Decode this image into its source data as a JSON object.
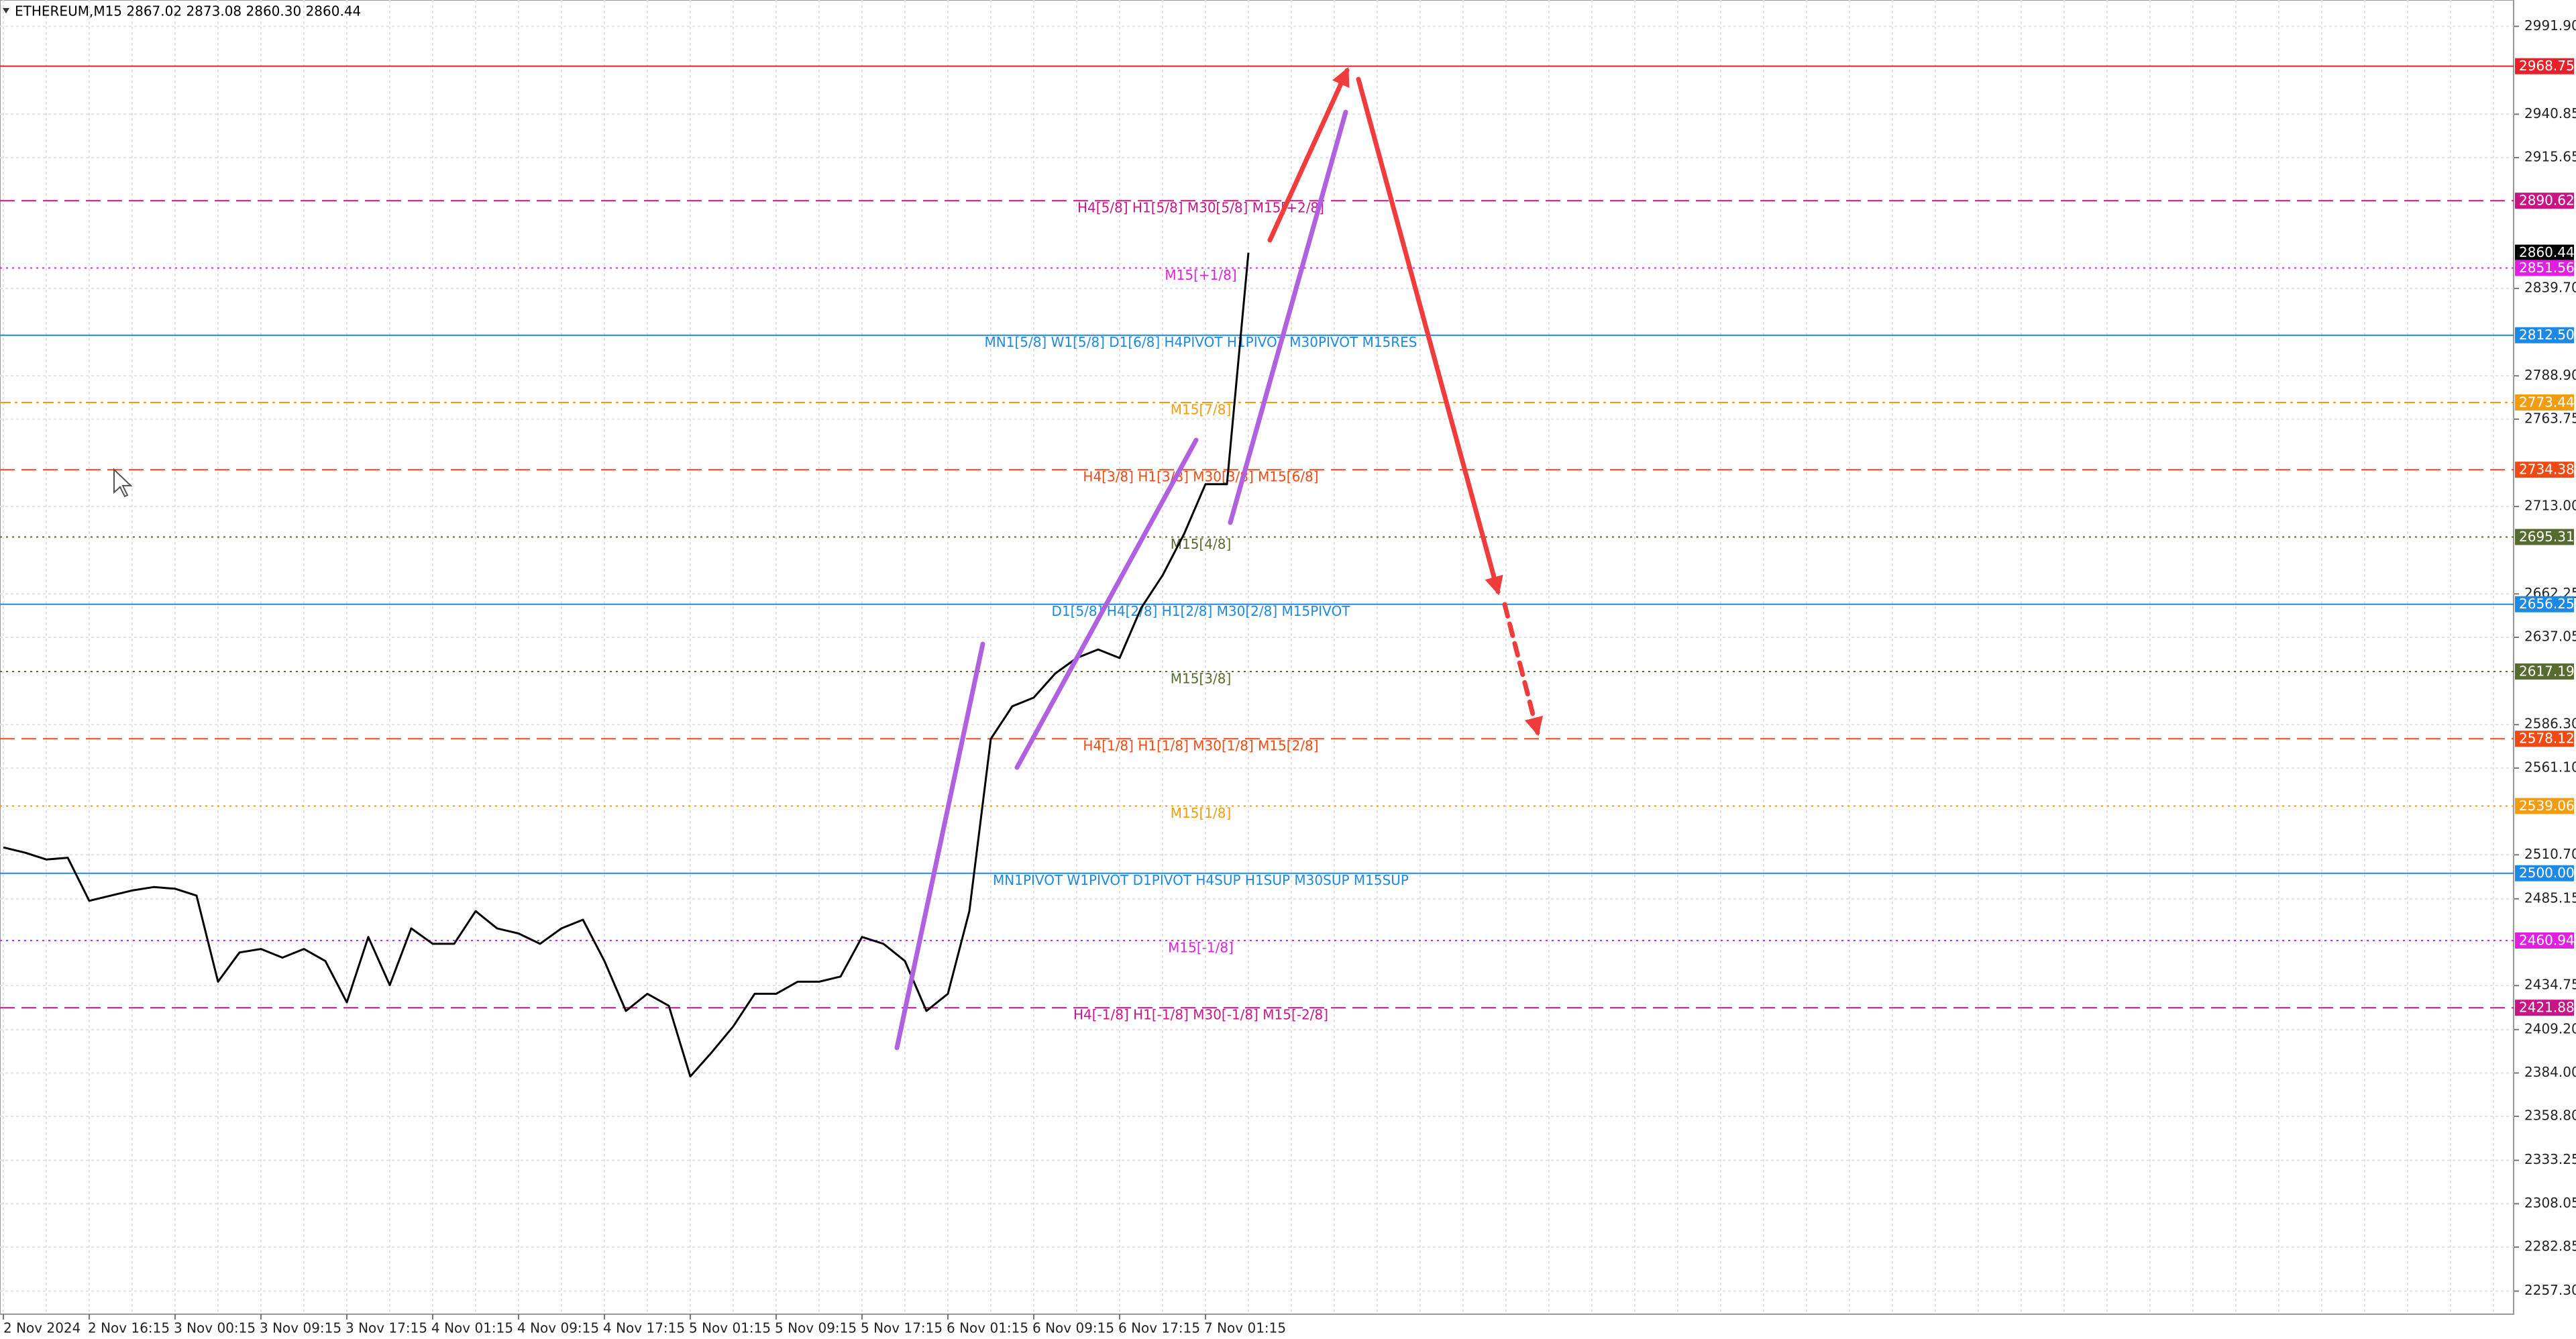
{
  "header": {
    "symbol_line": "ETHEREUM,M15  2867.02 2873.08 2860.30 2860.44"
  },
  "chart_data": {
    "type": "line",
    "categories": [
      "2 Nov 2024",
      null,
      null,
      null,
      "2 Nov 16:15",
      null,
      null,
      null,
      "3 Nov 00:15",
      null,
      null,
      null,
      "3 Nov 09:15",
      null,
      null,
      null,
      "3 Nov 17:15",
      null,
      null,
      null,
      "4 Nov 01:15",
      null,
      null,
      null,
      "4 Nov 09:15",
      null,
      null,
      null,
      "4 Nov 17:15",
      null,
      null,
      null,
      "5 Nov 01:15",
      null,
      null,
      null,
      "5 Nov 09:15",
      null,
      null,
      null,
      "5 Nov 17:15",
      null,
      null,
      null,
      "6 Nov 01:15",
      null,
      null,
      null,
      "6 Nov 09:15",
      null,
      null,
      null,
      "6 Nov 17:15",
      null,
      null,
      null,
      "7 Nov 01:15",
      null,
      null
    ],
    "series": [
      {
        "color": "#000000",
        "values": [
          2515,
          2512,
          2508,
          2509,
          2484,
          2487,
          2490,
          2492,
          2491,
          2487,
          2437,
          2454,
          2456,
          2451,
          2456,
          2449,
          2425,
          2463,
          2435,
          2468,
          2459,
          2459,
          2478,
          2468,
          2465,
          2459,
          2468,
          2473,
          2449,
          2420,
          2430,
          2423,
          2382,
          2396,
          2411,
          2430,
          2430,
          2437,
          2437,
          2440,
          2463,
          2459,
          2449,
          2420,
          2430,
          2478,
          2578,
          2597,
          2602,
          2616,
          2625,
          2630,
          2625,
          2654,
          2673,
          2697,
          2726,
          2726,
          2860.44
        ]
      }
    ],
    "ylim": [
      2243.9,
      3007.2
    ],
    "yticks": [
      {
        "value": 2991.9,
        "label": "2991.90"
      },
      {
        "value": 2940.85,
        "label": "2940.85"
      },
      {
        "value": 2915.65,
        "label": "2915.65"
      },
      {
        "value": 2839.7,
        "label": "2839.70"
      },
      {
        "value": 2788.9,
        "label": "2788.90"
      },
      {
        "value": 2763.75,
        "label": "2763.75"
      },
      {
        "value": 2713,
        "label": "2713.00"
      },
      {
        "value": 2662.25,
        "label": "2662.25"
      },
      {
        "value": 2637.05,
        "label": "2637.05"
      },
      {
        "value": 2586.3,
        "label": "2586.30"
      },
      {
        "value": 2561.1,
        "label": "2561.10"
      },
      {
        "value": 2510.7,
        "label": "2510.70"
      },
      {
        "value": 2485.15,
        "label": "2485.15"
      },
      {
        "value": 2434.75,
        "label": "2434.75"
      },
      {
        "value": 2409.2,
        "label": "2409.20"
      },
      {
        "value": 2384,
        "label": "2384.00"
      },
      {
        "value": 2358.8,
        "label": "2358.80"
      },
      {
        "value": 2333.25,
        "label": "2333.25"
      },
      {
        "value": 2308.05,
        "label": "2308.05"
      },
      {
        "value": 2282.85,
        "label": "2282.85"
      },
      {
        "value": 2257.3,
        "label": "2257.30"
      }
    ],
    "grid": true,
    "levels": [
      {
        "value": 2968.75,
        "value_label": "2968.75",
        "color": "#e8202a",
        "style": "solid"
      },
      {
        "value": 2890.62,
        "value_label": "2890.62",
        "label": "H4[5/8] H1[5/8] M30[5/8] M15[+2/8]",
        "color": "#c71585",
        "style": "dashed"
      },
      {
        "value": 2860.44,
        "value_label": "2860.44",
        "color": "#000000",
        "style": "none"
      },
      {
        "value": 2851.56,
        "value_label": "2851.56",
        "label": "M15[+1/8]",
        "color": "#e020e0",
        "style": "dotted"
      },
      {
        "value": 2812.5,
        "value_label": "2812.50",
        "label": "MN1[5/8] W1[5/8] D1[6/8] H4PIVOT H1PIVOT M30PIVOT M15RES",
        "color": "#1e88e5",
        "style": "solid"
      },
      {
        "value": 2773.44,
        "value_label": "2773.44",
        "label": "M15[7/8]",
        "color": "#f39c12",
        "style": "dashdot"
      },
      {
        "value": 2734.38,
        "value_label": "2734.38",
        "label": "H4[3/8] H1[3/8] M30[3/8] M15[6/8]",
        "color": "#f04a14",
        "style": "dashed"
      },
      {
        "value": 2695.31,
        "value_label": "2695.31",
        "label": "M15[4/8]",
        "color": "#556b2f",
        "style": "dotted"
      },
      {
        "value": 2656.25,
        "value_label": "2656.25",
        "label": "D1[5/8] H4[2/8] H1[2/8] M30[2/8] M15PIVOT",
        "color": "#1e88e5",
        "style": "solid"
      },
      {
        "value": 2617.19,
        "value_label": "2617.19",
        "label": "M15[3/8]",
        "color": "#556b2f",
        "style": "dotted"
      },
      {
        "value": 2578.12,
        "value_label": "2578.12",
        "label": "H4[1/8] H1[1/8] M30[1/8] M15[2/8]",
        "color": "#f04a14",
        "style": "dashed"
      },
      {
        "value": 2539.06,
        "value_label": "2539.06",
        "label": "M15[1/8]",
        "color": "#f39c12",
        "style": "dotted"
      },
      {
        "value": 2500,
        "value_label": "2500.00",
        "label": "MN1PIVOT W1PIVOT D1PIVOT H4SUP H1SUP M30SUP M15SUP",
        "color": "#1e88e5",
        "style": "solid"
      },
      {
        "value": 2460.94,
        "value_label": "2460.94",
        "label": "M15[-1/8]",
        "color": "#e020e0",
        "style": "dotted"
      },
      {
        "value": 2421.88,
        "value_label": "2421.88",
        "label": "H4[-1/8] H1[-1/8] M30[-1/8] M15[-2/8]",
        "color": "#c71585",
        "style": "dashed"
      }
    ]
  }
}
